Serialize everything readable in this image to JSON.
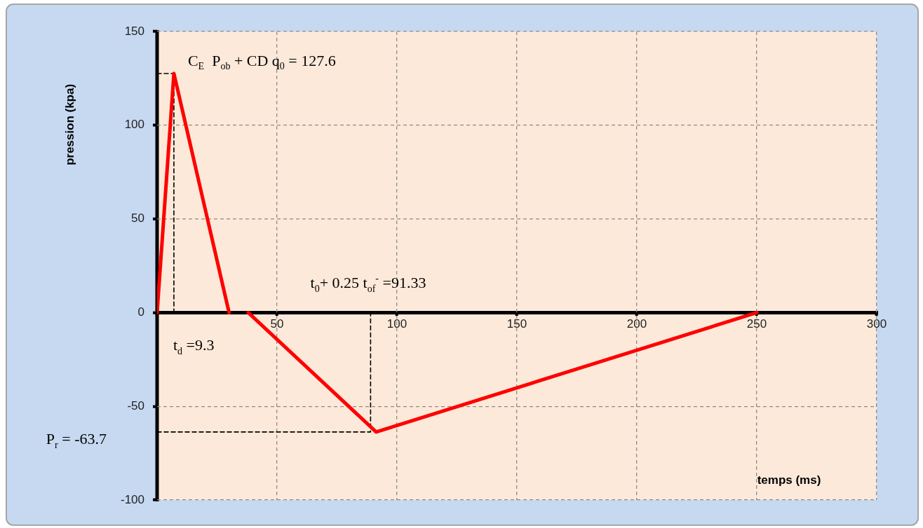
{
  "chart_data": {
    "type": "line",
    "xlabel": "temps (ms)",
    "ylabel": "pression (kpa)",
    "annotations": [
      {
        "text": "C$_{E}$  P$_{ob}$ + CD q$_{0}$ = 127.6",
        "x": 7,
        "y": 127.6
      },
      "t$_{0}$+ 0.25 t$_{of}$$^{-}$ =91.33",
      "t$_{d}$ =9.3",
      "P$_{r}$ = -63.7"
    ],
    "series": [
      {
        "color": "#ff0000",
        "x": [
          0,
          7,
          30
        ],
        "values": [
          0,
          127.6,
          0
        ]
      },
      {
        "color": "#ff0000",
        "x": [
          38,
          91.33,
          250
        ],
        "values": [
          0,
          -63.7,
          0
        ]
      },
      {
        "color": "#000000",
        "line_style": "dashed",
        "x": [
          0,
          7,
          7
        ],
        "values": [
          127.6,
          127.6,
          0
        ]
      },
      {
        "color": "#000000",
        "line_style": "dashed",
        "x": [
          0,
          89,
          89
        ],
        "values": [
          -63.7,
          -63.7,
          0
        ]
      }
    ],
    "xlim": [
      0,
      300
    ],
    "xticks": [
      {
        "value": 0,
        "label": null
      },
      50,
      100,
      150,
      200,
      250,
      300
    ],
    "ylim": [
      -100,
      150
    ],
    "yticks": [
      -100,
      -50,
      0,
      50,
      100,
      150
    ],
    "grid": true,
    "marker": "none",
    "line_style": "solid"
  }
}
